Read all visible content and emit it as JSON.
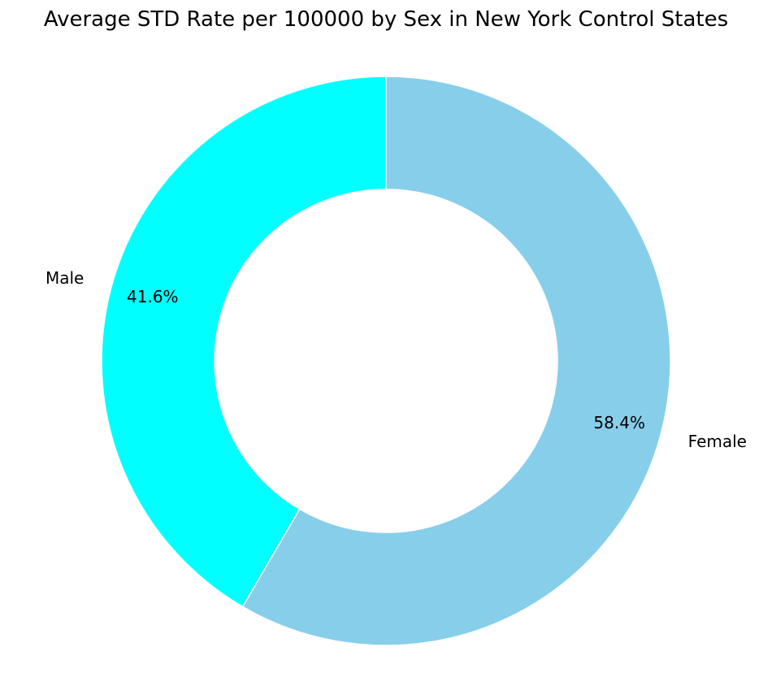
{
  "chart_data": {
    "type": "pie",
    "donut": true,
    "title": "Average STD Rate per 100000 by Sex in New York Control States",
    "slices": [
      {
        "label": "Male",
        "value": 41.6,
        "pct_label": "41.6%",
        "color": "#00FFFF"
      },
      {
        "label": "Female",
        "value": 58.4,
        "pct_label": "58.4%",
        "color": "#87CEEB"
      }
    ],
    "start_angle_deg": 90,
    "direction": "counterclockwise",
    "edge_color": "#FFFFFF"
  }
}
